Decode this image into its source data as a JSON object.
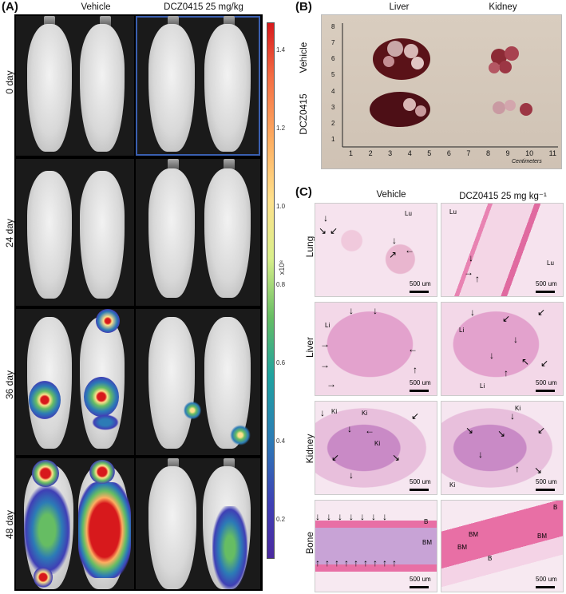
{
  "panel_a": {
    "label": "(A)",
    "col1_title": "Vehicle",
    "col2_title": "DCZ0415 25 mg/kg",
    "rows": [
      "0 day",
      "24 day",
      "36 day",
      "48 day"
    ],
    "colorbar_unit": "x10⁸",
    "colorbar_ticks": [
      "1.4",
      "1.2",
      "1.0",
      "0.8",
      "0.6",
      "0.4",
      "0.2"
    ]
  },
  "panel_b": {
    "label": "(B)",
    "col1_title": "Liver",
    "col2_title": "Kidney",
    "row1": "Vehicle",
    "row2": "DCZ0415",
    "ruler_numbers": [
      "1",
      "2",
      "3",
      "4",
      "5",
      "6",
      "7",
      "8",
      "9",
      "10",
      "11"
    ],
    "ruler_unit": "Centimeters",
    "ruler_vertical": [
      "8",
      "7",
      "6",
      "5",
      "4",
      "3",
      "2",
      "1"
    ]
  },
  "panel_c": {
    "label": "(C)",
    "col1_title": "Vehicle",
    "col2_title": "DCZ0415 25 mg kg⁻¹",
    "rows": [
      "Lung",
      "Liver",
      "Kidney",
      "Bone"
    ],
    "scale": "500 um",
    "tissue_tags": {
      "lung_left": "Lu",
      "lung_right_a": "Lu",
      "lung_right_b": "Lu",
      "liver_left": "Li",
      "liver_right_a": "Li",
      "liver_right_b": "Li",
      "kidney_left_a": "Ki",
      "kidney_left_b": "Ki",
      "kidney_left_c": "Ki",
      "kidney_left_d": "Ki",
      "kidney_right_a": "Ki",
      "kidney_right_b": "Ki",
      "bone_left_a": "B",
      "bone_left_b": "BM",
      "bone_right_a": "B",
      "bone_right_b": "BM",
      "bone_right_c": "BM",
      "bone_right_d": "BM",
      "bone_right_e": "B"
    }
  }
}
